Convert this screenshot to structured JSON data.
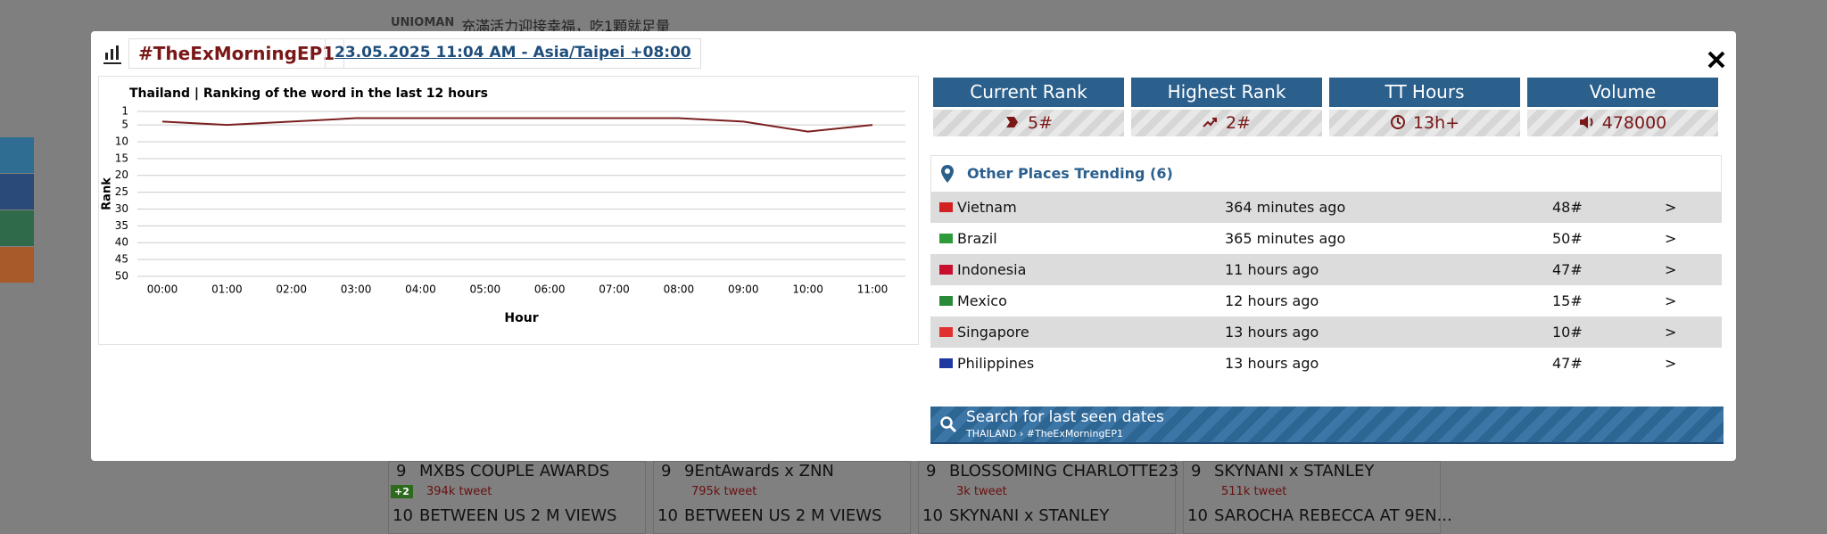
{
  "background": {
    "top_brand": "UNIOMAN",
    "top_text": "充滿活力迎接幸福，吃1顆就足量",
    "cards": [
      {
        "rank": "9",
        "name": "MXBS COUPLE AWARDS",
        "change": "+2",
        "tweets": "394k tweet",
        "next_rank": "10",
        "next_name": "BETWEEN US 2 M VIEWS"
      },
      {
        "rank": "9",
        "name": "9EntAwards x ZNN",
        "tweets": "795k tweet",
        "next_rank": "10",
        "next_name": "BETWEEN US 2 M VIEWS"
      },
      {
        "rank": "9",
        "name": "BLOSSOMING CHARLOTTE23",
        "tweets": "3k tweet",
        "next_rank": "10",
        "next_name": "SKYNANI x STANLEY"
      },
      {
        "rank": "9",
        "name": "SKYNANI x STANLEY",
        "tweets": "511k tweet",
        "next_rank": "10",
        "next_name": "SAROCHA REBECCA AT 9EN..."
      }
    ]
  },
  "modal": {
    "hashtag": "#TheExMorningEP1",
    "date": "23.05.2025 11:04 AM - Asia/Taipei +08:00",
    "stats": [
      {
        "label": "Current Rank",
        "value": "5#"
      },
      {
        "label": "Highest Rank",
        "value": "2#"
      },
      {
        "label": "TT Hours",
        "value": "13h+"
      },
      {
        "label": "Volume",
        "value": "478000"
      }
    ],
    "other_places": {
      "title": "Other Places Trending (6)",
      "rows": [
        {
          "country": "Vietnam",
          "time": "364 minutes ago",
          "rank": "48#",
          "more": ">"
        },
        {
          "country": "Brazil",
          "time": "365 minutes ago",
          "rank": "50#",
          "more": ">"
        },
        {
          "country": "Indonesia",
          "time": "11 hours ago",
          "rank": "47#",
          "more": ">"
        },
        {
          "country": "Mexico",
          "time": "12 hours ago",
          "rank": "15#",
          "more": ">"
        },
        {
          "country": "Singapore",
          "time": "13 hours ago",
          "rank": "10#",
          "more": ">"
        },
        {
          "country": "Philippines",
          "time": "13 hours ago",
          "rank": "47#",
          "more": ">"
        }
      ]
    },
    "search": {
      "title": "Search for last seen dates",
      "path": "THAILAND › #TheExMorningEP1"
    }
  },
  "chart_data": {
    "type": "line",
    "title": "Thailand | Ranking of the word in the last 12 hours",
    "x_label": "Hour",
    "y_label": "Rank",
    "categories": [
      "00:00",
      "01:00",
      "02:00",
      "03:00",
      "04:00",
      "05:00",
      "06:00",
      "07:00",
      "08:00",
      "09:00",
      "10:00",
      "11:00"
    ],
    "values": [
      4,
      5,
      4,
      3,
      3,
      3,
      3,
      3,
      3,
      4,
      7,
      5
    ],
    "color": "#7b1f1f",
    "ylim": [
      1,
      50
    ],
    "y_inverted": true,
    "yticks": [
      1,
      5,
      10,
      15,
      20,
      25,
      30,
      35,
      40,
      45,
      50
    ],
    "grid": true
  }
}
